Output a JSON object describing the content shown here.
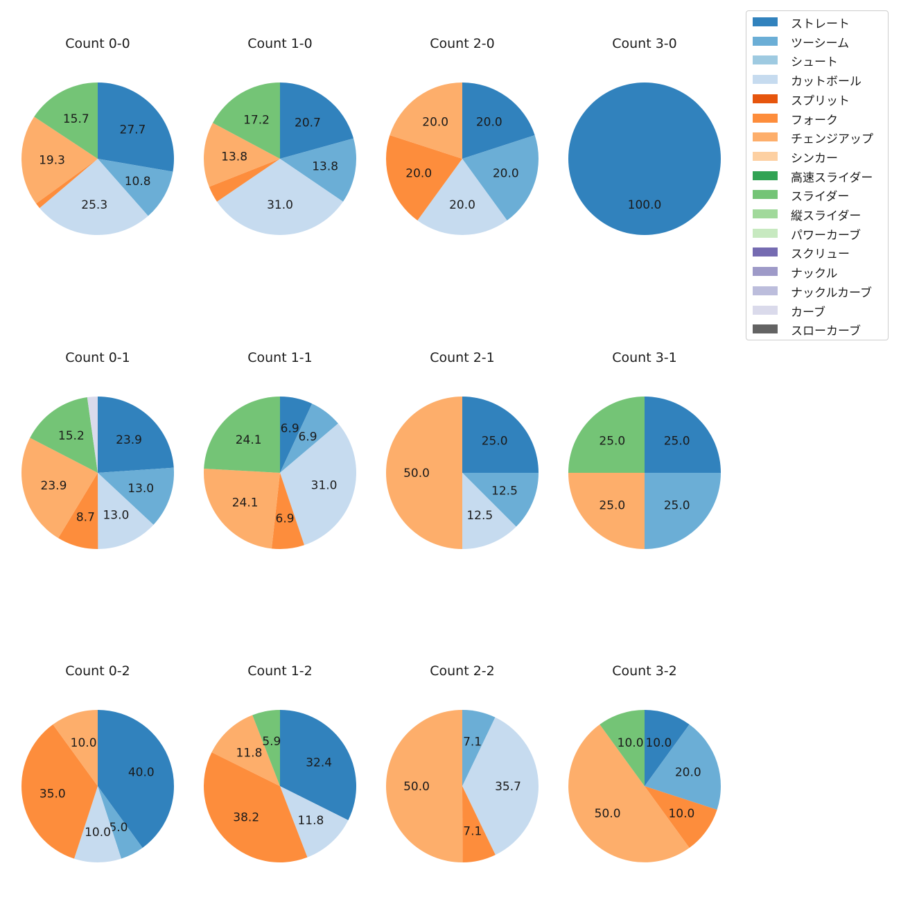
{
  "chart_data": {
    "type": "pie",
    "pitch_types": [
      {
        "name": "ストレート",
        "color": "#3182bd"
      },
      {
        "name": "ツーシーム",
        "color": "#6baed6"
      },
      {
        "name": "シュート",
        "color": "#9ecae1"
      },
      {
        "name": "カットボール",
        "color": "#c6dbef"
      },
      {
        "name": "スプリット",
        "color": "#e6550d"
      },
      {
        "name": "フォーク",
        "color": "#fd8d3c"
      },
      {
        "name": "チェンジアップ",
        "color": "#fdae6b"
      },
      {
        "name": "シンカー",
        "color": "#fdd0a2"
      },
      {
        "name": "高速スライダー",
        "color": "#31a354"
      },
      {
        "name": "スライダー",
        "color": "#74c476"
      },
      {
        "name": "縦スライダー",
        "color": "#a1d99b"
      },
      {
        "name": "パワーカーブ",
        "color": "#c7e9c0"
      },
      {
        "name": "スクリュー",
        "color": "#756bb1"
      },
      {
        "name": "ナックル",
        "color": "#9e9ac8"
      },
      {
        "name": "ナックルカーブ",
        "color": "#bcbddc"
      },
      {
        "name": "カーブ",
        "color": "#dadaeb"
      },
      {
        "name": "スローカーブ",
        "color": "#636363"
      }
    ],
    "charts": [
      {
        "title": "Count 0-0",
        "slices": [
          {
            "pitch": "ストレート",
            "value": 27.7
          },
          {
            "pitch": "ツーシーム",
            "value": 10.8
          },
          {
            "pitch": "カットボール",
            "value": 25.3
          },
          {
            "pitch": "フォーク",
            "value": 1.2
          },
          {
            "pitch": "チェンジアップ",
            "value": 19.3
          },
          {
            "pitch": "スライダー",
            "value": 15.7
          }
        ]
      },
      {
        "title": "Count 1-0",
        "slices": [
          {
            "pitch": "ストレート",
            "value": 20.7
          },
          {
            "pitch": "ツーシーム",
            "value": 13.8
          },
          {
            "pitch": "カットボール",
            "value": 31.0
          },
          {
            "pitch": "フォーク",
            "value": 3.5
          },
          {
            "pitch": "チェンジアップ",
            "value": 13.8
          },
          {
            "pitch": "スライダー",
            "value": 17.2
          }
        ]
      },
      {
        "title": "Count 2-0",
        "slices": [
          {
            "pitch": "ストレート",
            "value": 20.0
          },
          {
            "pitch": "ツーシーム",
            "value": 20.0
          },
          {
            "pitch": "カットボール",
            "value": 20.0
          },
          {
            "pitch": "フォーク",
            "value": 20.0
          },
          {
            "pitch": "チェンジアップ",
            "value": 20.0
          }
        ]
      },
      {
        "title": "Count 3-0",
        "slices": [
          {
            "pitch": "ストレート",
            "value": 100.0
          }
        ]
      },
      {
        "title": "Count 0-1",
        "slices": [
          {
            "pitch": "ストレート",
            "value": 23.9
          },
          {
            "pitch": "ツーシーム",
            "value": 13.0
          },
          {
            "pitch": "カットボール",
            "value": 13.0
          },
          {
            "pitch": "フォーク",
            "value": 8.7
          },
          {
            "pitch": "チェンジアップ",
            "value": 23.9
          },
          {
            "pitch": "スライダー",
            "value": 15.2
          },
          {
            "pitch": "カーブ",
            "value": 2.2
          }
        ]
      },
      {
        "title": "Count 1-1",
        "slices": [
          {
            "pitch": "ストレート",
            "value": 6.9
          },
          {
            "pitch": "ツーシーム",
            "value": 6.9
          },
          {
            "pitch": "カットボール",
            "value": 31.0
          },
          {
            "pitch": "フォーク",
            "value": 6.9
          },
          {
            "pitch": "チェンジアップ",
            "value": 24.1
          },
          {
            "pitch": "スライダー",
            "value": 24.1
          }
        ]
      },
      {
        "title": "Count 2-1",
        "slices": [
          {
            "pitch": "ストレート",
            "value": 25.0
          },
          {
            "pitch": "ツーシーム",
            "value": 12.5
          },
          {
            "pitch": "カットボール",
            "value": 12.5
          },
          {
            "pitch": "チェンジアップ",
            "value": 50.0
          }
        ]
      },
      {
        "title": "Count 3-1",
        "slices": [
          {
            "pitch": "ストレート",
            "value": 25.0
          },
          {
            "pitch": "ツーシーム",
            "value": 25.0
          },
          {
            "pitch": "チェンジアップ",
            "value": 25.0
          },
          {
            "pitch": "スライダー",
            "value": 25.0
          }
        ]
      },
      {
        "title": "Count 0-2",
        "slices": [
          {
            "pitch": "ストレート",
            "value": 40.0
          },
          {
            "pitch": "ツーシーム",
            "value": 5.0
          },
          {
            "pitch": "カットボール",
            "value": 10.0
          },
          {
            "pitch": "フォーク",
            "value": 35.0
          },
          {
            "pitch": "チェンジアップ",
            "value": 10.0
          }
        ]
      },
      {
        "title": "Count 1-2",
        "slices": [
          {
            "pitch": "ストレート",
            "value": 32.4
          },
          {
            "pitch": "カットボール",
            "value": 11.8
          },
          {
            "pitch": "フォーク",
            "value": 38.2
          },
          {
            "pitch": "チェンジアップ",
            "value": 11.8
          },
          {
            "pitch": "スライダー",
            "value": 5.9
          }
        ]
      },
      {
        "title": "Count 2-2",
        "slices": [
          {
            "pitch": "ツーシーム",
            "value": 7.1
          },
          {
            "pitch": "カットボール",
            "value": 35.7
          },
          {
            "pitch": "フォーク",
            "value": 7.1
          },
          {
            "pitch": "チェンジアップ",
            "value": 50.0
          }
        ]
      },
      {
        "title": "Count 3-2",
        "slices": [
          {
            "pitch": "ストレート",
            "value": 10.0
          },
          {
            "pitch": "ツーシーム",
            "value": 20.0
          },
          {
            "pitch": "フォーク",
            "value": 10.0
          },
          {
            "pitch": "チェンジアップ",
            "value": 50.0
          },
          {
            "pitch": "スライダー",
            "value": 10.0
          }
        ]
      }
    ],
    "label_threshold": 5,
    "start_angle": "12 o'clock",
    "direction": "clockwise",
    "legend_position": "top-right"
  }
}
